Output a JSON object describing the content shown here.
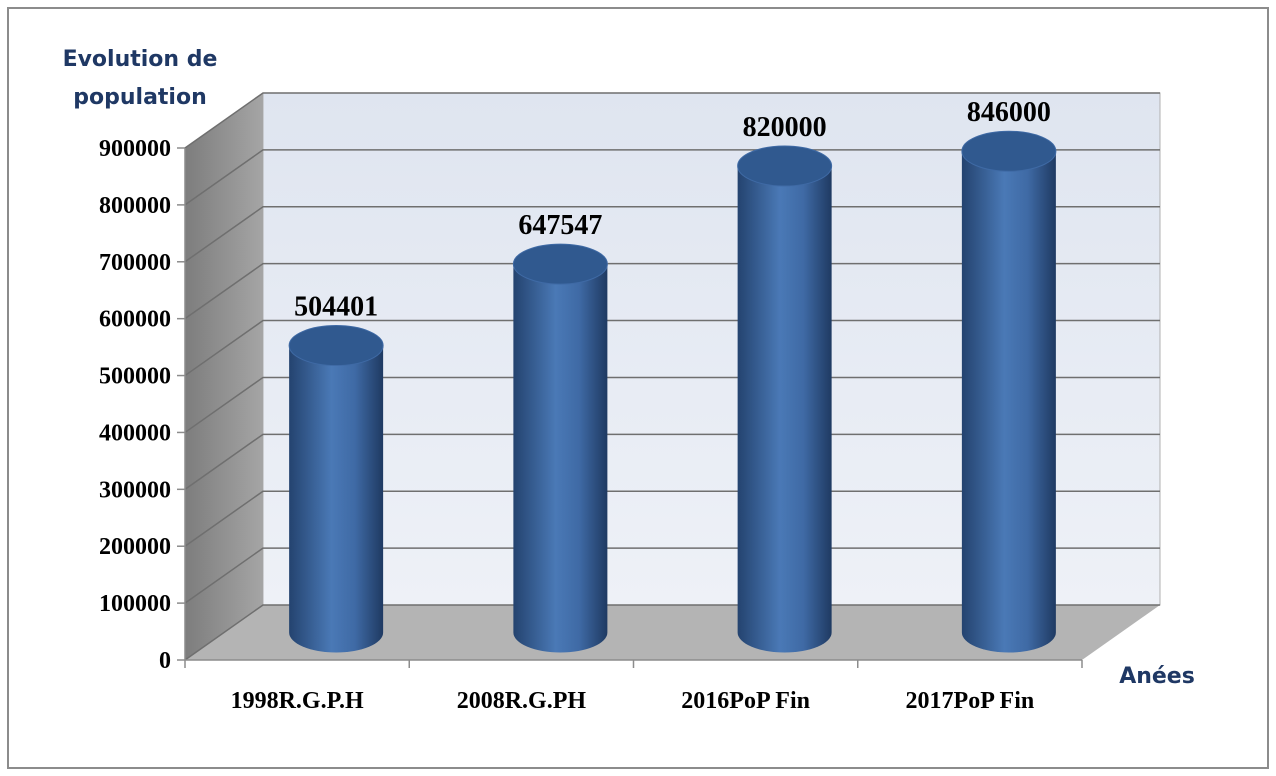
{
  "chart_data": {
    "type": "bar3d-cylinder",
    "y_label_lines": [
      "Evolution de",
      "population"
    ],
    "x_label": "Anées",
    "categories": [
      "1998R.G.P.H",
      "2008R.G.PH",
      "2016PoP Fin",
      "2017PoP Fin"
    ],
    "values": [
      504401,
      647547,
      820000,
      846000
    ],
    "color": "#3d6aa8",
    "ylim": [
      0,
      900000
    ],
    "yticks": [
      0,
      100000,
      200000,
      300000,
      400000,
      500000,
      600000,
      700000,
      800000,
      900000
    ],
    "grid": true
  }
}
